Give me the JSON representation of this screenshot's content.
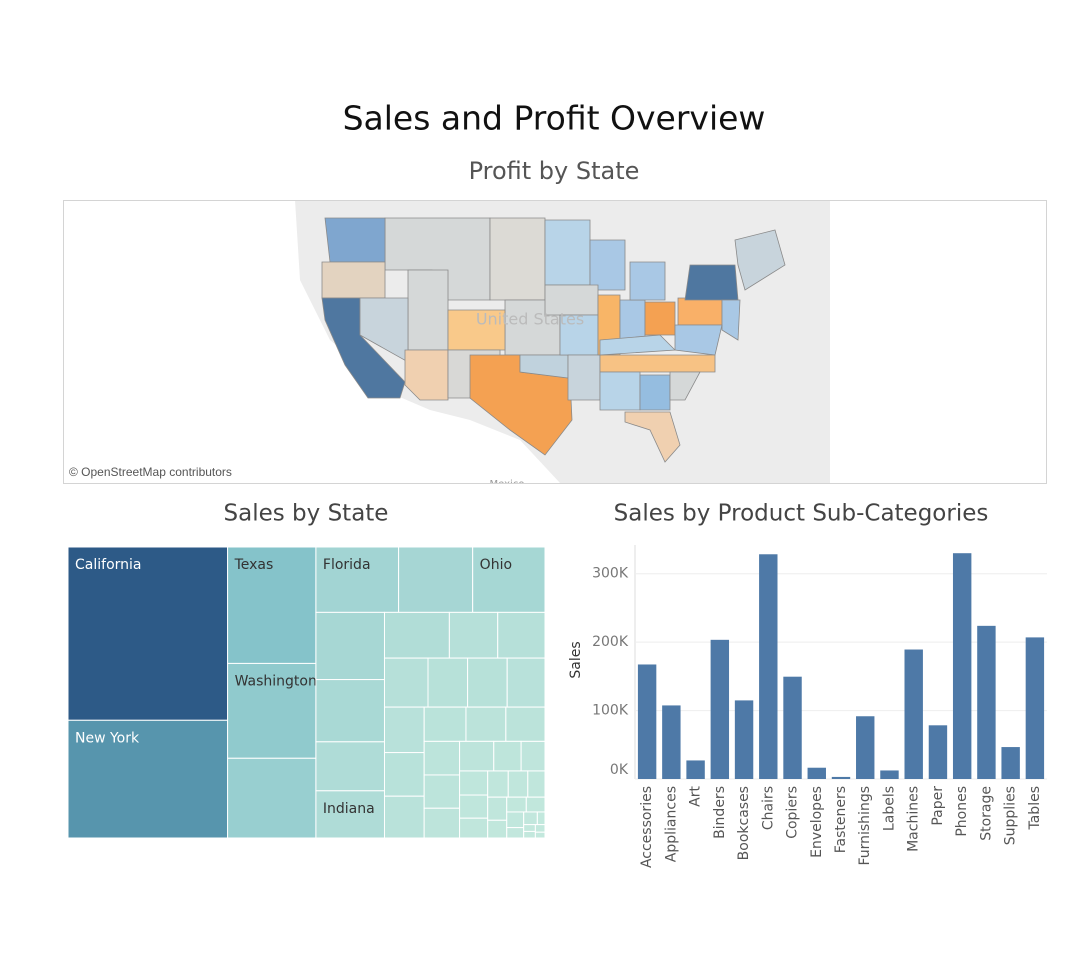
{
  "title": "Sales and Profit Overview",
  "chart_data": [
    {
      "type": "map",
      "title": "Profit by State",
      "attribution": "© OpenStreetMap contributors",
      "map_labels": [
        "United States",
        "Mexico"
      ]
    },
    {
      "type": "treemap",
      "title": "Sales by State",
      "categories": [
        "California",
        "New York",
        "Texas",
        "Washington",
        null,
        "Florida",
        null,
        "Ohio",
        null,
        null,
        null,
        "Indiana",
        null,
        null,
        null,
        null,
        null,
        null,
        null,
        null,
        null,
        null,
        null,
        null,
        null,
        null,
        null,
        null,
        null,
        null,
        null,
        null,
        null,
        null,
        null,
        null,
        null,
        null,
        null,
        null,
        null,
        null,
        null,
        null,
        null,
        null,
        null,
        null,
        null
      ],
      "values": [
        457688,
        310876,
        170188,
        138641,
        116512,
        89474,
        80166,
        78258,
        76270,
        70637,
        55603,
        53555,
        49096,
        36592,
        35764,
        35282,
        32114,
        32108,
        30662,
        29863,
        28634,
        27451,
        23706,
        22628,
        22205,
        19683,
        19511,
        17431,
        16729,
        13384,
        11678,
        11220,
        10771,
        9217,
        8929,
        8482,
        7465,
        7293,
        5589,
        4784,
        4580,
        4382,
        2914,
        2865,
        1603,
        1316,
        1271,
        1210,
        920
      ],
      "colors": [
        "#c3e8dd",
        "#6fb6c3",
        "#2d5a87"
      ]
    },
    {
      "type": "bar",
      "title": "Sales by Product Sub-Categories",
      "y_label": "Sales",
      "categories": [
        "Accessories",
        "Appliances",
        "Art",
        "Binders",
        "Bookcases",
        "Chairs",
        "Copiers",
        "Envelopes",
        "Fasteners",
        "Furnishings",
        "Labels",
        "Machines",
        "Paper",
        "Phones",
        "Storage",
        "Supplies",
        "Tables"
      ],
      "values": [
        167380,
        107532,
        27119,
        203413,
        114880,
        328449,
        149528,
        16476,
        3024,
        91705,
        12486,
        189239,
        78479,
        330007,
        223844,
        46674,
        206966
      ],
      "color": "#4e79a7",
      "ylim": [
        0,
        342000
      ],
      "yticks": [
        {
          "value": 0,
          "label": "0K"
        },
        {
          "value": 100000,
          "label": "100K"
        },
        {
          "value": 200000,
          "label": "200K"
        },
        {
          "value": 300000,
          "label": "300K"
        }
      ],
      "grid": true
    }
  ]
}
